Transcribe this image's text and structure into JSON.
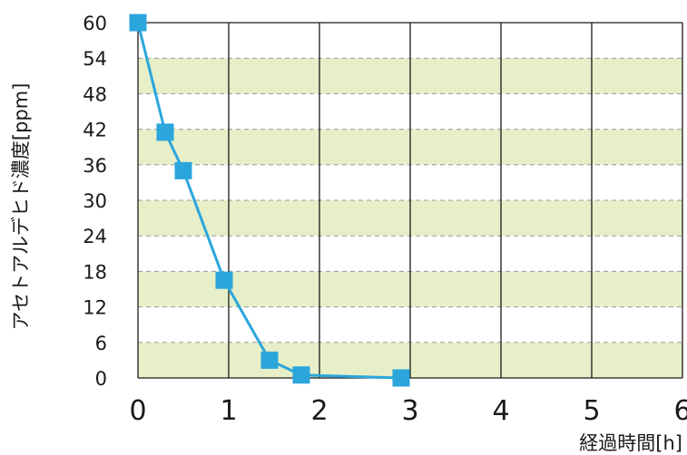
{
  "chart_data": {
    "type": "line",
    "xlabel": "経過時間[h]",
    "ylabel": "アセトアルデヒド濃度[ppm]",
    "xlim": [
      0,
      6
    ],
    "ylim": [
      0,
      60
    ],
    "xticks": [
      "0",
      "1",
      "2",
      "3",
      "4",
      "5",
      "6"
    ],
    "yticks": [
      "0",
      "6",
      "12",
      "18",
      "24",
      "30",
      "36",
      "42",
      "48",
      "54",
      "60"
    ],
    "band_color": "#e6efc8",
    "grid": true,
    "legend": "none",
    "series": [
      {
        "color": "#2ba6dc",
        "marker": "square",
        "x": [
          0,
          0.3,
          0.5,
          0.95,
          1.45,
          1.8,
          2.9
        ],
        "y": [
          60,
          41.5,
          35,
          16.5,
          3,
          0.5,
          0
        ]
      }
    ]
  }
}
